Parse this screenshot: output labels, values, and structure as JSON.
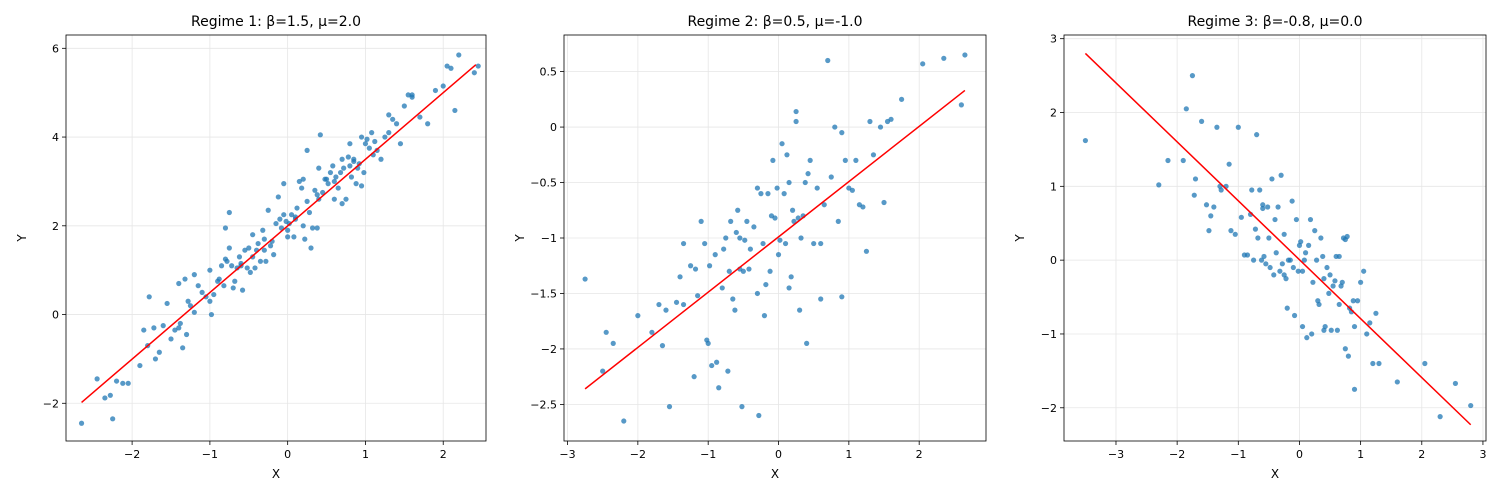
{
  "figure": {
    "background": "#ffffff"
  },
  "chart_data": [
    {
      "type": "scatter",
      "title": "Regime 1: β=1.5, μ=2.0",
      "xlabel": "X",
      "ylabel": "Y",
      "xlim": [
        -2.85,
        2.55
      ],
      "ylim": [
        -2.85,
        6.3
      ],
      "xticks": [
        -2,
        -1,
        0,
        1,
        2
      ],
      "yticks": [
        -2,
        0,
        2,
        4,
        6
      ],
      "grid": true,
      "point_color": "#1f77b4",
      "line_color": "#ff0000",
      "fit_line": {
        "x": [
          -2.65,
          2.42
        ],
        "y": [
          -1.98,
          5.63
        ]
      },
      "points": {
        "x": [
          -2.65,
          -2.45,
          -2.35,
          -2.28,
          -2.25,
          -2.2,
          -2.12,
          -2.05,
          -1.9,
          -1.85,
          -1.8,
          -1.78,
          -1.72,
          -1.7,
          -1.65,
          -1.6,
          -1.55,
          -1.5,
          -1.45,
          -1.4,
          -1.38,
          -1.35,
          -1.32,
          -1.3,
          -1.28,
          -1.25,
          -1.2,
          -1.15,
          -1.1,
          -1.05,
          -1.0,
          -0.98,
          -0.95,
          -0.9,
          -0.88,
          -0.85,
          -0.82,
          -0.8,
          -0.78,
          -0.75,
          -0.72,
          -0.7,
          -0.68,
          -0.65,
          -0.62,
          -0.6,
          -0.58,
          -0.55,
          -0.52,
          -0.5,
          -0.48,
          -0.45,
          -0.42,
          -0.4,
          -0.38,
          -0.35,
          -0.32,
          -0.3,
          -0.28,
          -0.25,
          -0.22,
          -0.2,
          -0.18,
          -0.15,
          -0.12,
          -0.1,
          -0.08,
          -0.05,
          -0.02,
          0.0,
          0.02,
          0.05,
          0.08,
          0.1,
          0.12,
          0.15,
          0.18,
          0.2,
          0.22,
          0.25,
          0.28,
          0.3,
          0.32,
          0.35,
          0.38,
          0.4,
          0.42,
          0.45,
          0.48,
          0.5,
          0.52,
          0.55,
          0.58,
          0.6,
          0.62,
          0.65,
          0.68,
          0.7,
          0.72,
          0.75,
          0.78,
          0.8,
          0.82,
          0.85,
          0.88,
          0.9,
          0.92,
          0.95,
          0.98,
          1.0,
          1.02,
          1.05,
          1.08,
          1.1,
          1.12,
          1.15,
          1.2,
          1.25,
          1.3,
          1.35,
          1.4,
          1.45,
          1.5,
          1.55,
          1.6,
          1.7,
          1.8,
          1.9,
          2.0,
          2.05,
          2.1,
          2.15,
          2.2,
          2.4,
          2.45,
          -0.75,
          -0.3,
          0.2,
          0.6,
          0.95,
          1.3,
          -1.2,
          -0.6,
          0.0,
          0.4,
          0.8,
          -0.05,
          0.38,
          -0.8,
          0.1,
          -1.4,
          0.7,
          -0.45,
          0.85,
          1.6,
          -1.0,
          0.25
        ],
        "y": [
          -2.45,
          -1.45,
          -1.88,
          -1.82,
          -2.35,
          -1.5,
          -1.55,
          -1.55,
          -1.15,
          -0.35,
          -0.7,
          0.4,
          -0.3,
          -1.0,
          -0.85,
          -0.25,
          0.25,
          -0.55,
          -0.35,
          -0.3,
          -0.2,
          -0.75,
          0.8,
          -0.45,
          0.3,
          0.2,
          0.05,
          0.65,
          0.5,
          0.4,
          1.0,
          0.0,
          0.45,
          0.75,
          0.8,
          1.1,
          0.65,
          1.25,
          1.2,
          1.5,
          1.1,
          0.6,
          0.75,
          1.05,
          1.3,
          1.1,
          0.55,
          1.45,
          1.05,
          1.5,
          0.95,
          1.3,
          1.05,
          1.45,
          1.6,
          1.2,
          1.9,
          1.45,
          1.2,
          2.35,
          1.55,
          1.65,
          1.35,
          2.05,
          2.65,
          2.15,
          1.95,
          2.25,
          2.1,
          1.9,
          2.05,
          2.25,
          1.75,
          2.2,
          2.4,
          3.0,
          2.85,
          3.05,
          1.7,
          2.55,
          2.3,
          1.5,
          1.95,
          2.8,
          1.95,
          2.6,
          4.05,
          2.75,
          3.05,
          3.05,
          2.95,
          3.2,
          3.35,
          3.0,
          3.1,
          2.85,
          3.2,
          3.5,
          3.3,
          2.6,
          3.55,
          3.35,
          3.1,
          3.45,
          2.95,
          3.3,
          3.4,
          4.0,
          3.2,
          3.85,
          3.95,
          3.75,
          4.1,
          3.6,
          3.9,
          3.7,
          3.5,
          4.0,
          4.1,
          4.4,
          4.3,
          3.85,
          4.7,
          4.95,
          4.9,
          4.45,
          4.3,
          5.05,
          5.15,
          5.6,
          5.55,
          4.6,
          5.85,
          5.45,
          5.6,
          2.3,
          1.7,
          2.0,
          2.6,
          2.9,
          4.5,
          0.9,
          1.15,
          1.75,
          3.3,
          3.85,
          2.95,
          2.7,
          1.95,
          2.15,
          0.7,
          2.5,
          1.8,
          3.5,
          4.95,
          0.3,
          3.7
        ]
      }
    },
    {
      "type": "scatter",
      "title": "Regime 2: β=0.5, μ=-1.0",
      "xlabel": "X",
      "ylabel": "Y",
      "xlim": [
        -3.05,
        2.95
      ],
      "ylim": [
        -2.83,
        0.83
      ],
      "xticks": [
        -3,
        -2,
        -1,
        0,
        1,
        2
      ],
      "yticks": [
        -2.5,
        -2.0,
        -1.5,
        -1.0,
        -0.5,
        0.0,
        0.5
      ],
      "grid": true,
      "point_color": "#1f77b4",
      "line_color": "#ff0000",
      "fit_line": {
        "x": [
          -2.75,
          2.65
        ],
        "y": [
          -2.36,
          0.33
        ]
      },
      "points": {
        "x": [
          -2.75,
          -2.5,
          -2.45,
          -2.35,
          -2.2,
          -2.0,
          -1.8,
          -1.7,
          -1.65,
          -1.6,
          -1.55,
          -1.45,
          -1.4,
          -1.35,
          -1.25,
          -1.2,
          -1.18,
          -1.15,
          -1.1,
          -1.05,
          -1.02,
          -1.0,
          -0.98,
          -0.95,
          -0.9,
          -0.88,
          -0.85,
          -0.8,
          -0.78,
          -0.75,
          -0.72,
          -0.7,
          -0.68,
          -0.65,
          -0.62,
          -0.6,
          -0.58,
          -0.55,
          -0.52,
          -0.5,
          -0.48,
          -0.45,
          -0.42,
          -0.4,
          -0.35,
          -0.3,
          -0.28,
          -0.25,
          -0.22,
          -0.2,
          -0.18,
          -0.15,
          -0.12,
          -0.1,
          -0.08,
          -0.05,
          -0.02,
          0.0,
          0.02,
          0.05,
          0.08,
          0.1,
          0.12,
          0.15,
          0.18,
          0.2,
          0.22,
          0.25,
          0.28,
          0.3,
          0.32,
          0.35,
          0.38,
          0.4,
          0.42,
          0.45,
          0.5,
          0.55,
          0.6,
          0.65,
          0.7,
          0.75,
          0.8,
          0.85,
          0.9,
          0.95,
          1.0,
          1.05,
          1.1,
          1.15,
          1.2,
          1.3,
          1.35,
          1.45,
          1.5,
          1.55,
          1.6,
          1.75,
          2.05,
          2.35,
          2.6,
          2.65,
          -0.3,
          0.15,
          0.6,
          -0.55,
          0.9,
          1.25,
          -1.35,
          0.25
        ],
        "y": [
          -1.37,
          -2.2,
          -1.85,
          -1.95,
          -2.65,
          -1.7,
          -1.85,
          -1.6,
          -1.97,
          -1.65,
          -2.52,
          -1.58,
          -1.35,
          -1.6,
          -1.25,
          -2.25,
          -1.28,
          -1.52,
          -0.85,
          -1.05,
          -1.92,
          -1.95,
          -1.25,
          -2.15,
          -1.15,
          -2.12,
          -2.35,
          -1.45,
          -1.1,
          -1.0,
          -2.2,
          -1.3,
          -0.85,
          -1.55,
          -1.65,
          -0.95,
          -0.75,
          -1.0,
          -2.52,
          -1.3,
          -1.02,
          -0.85,
          -1.28,
          -1.1,
          -0.9,
          -0.55,
          -2.6,
          -0.6,
          -1.05,
          -1.7,
          -1.42,
          -0.6,
          -1.3,
          -0.8,
          -0.3,
          -0.82,
          -0.55,
          -1.15,
          -1.02,
          -0.15,
          -0.6,
          -1.05,
          -0.25,
          -1.45,
          -1.35,
          -0.75,
          -0.85,
          0.14,
          -0.82,
          -1.65,
          -1.0,
          -0.8,
          -0.5,
          -1.95,
          -0.42,
          -0.3,
          -1.05,
          -0.55,
          -1.05,
          -0.7,
          0.6,
          -0.45,
          0.0,
          -0.85,
          -0.05,
          -0.3,
          -0.55,
          -0.57,
          -0.3,
          -0.7,
          -0.72,
          0.05,
          -0.25,
          0.0,
          -0.68,
          0.05,
          0.07,
          0.25,
          0.57,
          0.62,
          0.2,
          0.65,
          -1.5,
          -0.5,
          -1.55,
          -1.28,
          -1.53,
          -1.12,
          -1.05,
          0.05
        ],
        "_comment": ""
      }
    },
    {
      "type": "scatter",
      "title": "Regime 3: β=-0.8, μ=0.0",
      "xlabel": "X",
      "ylabel": "Y",
      "xlim": [
        -3.85,
        3.05
      ],
      "ylim": [
        -2.45,
        3.05
      ],
      "xticks": [
        -3,
        -2,
        -1,
        0,
        1,
        2,
        3
      ],
      "yticks": [
        -2,
        -1,
        0,
        1,
        2,
        3
      ],
      "grid": true,
      "point_color": "#1f77b4",
      "line_color": "#ff0000",
      "fit_line": {
        "x": [
          -3.5,
          2.8
        ],
        "y": [
          2.8,
          -2.23
        ]
      },
      "points": {
        "x": [
          -3.5,
          -2.3,
          -2.15,
          -1.9,
          -1.85,
          -1.75,
          -1.72,
          -1.7,
          -1.6,
          -1.52,
          -1.48,
          -1.45,
          -1.4,
          -1.35,
          -1.28,
          -1.2,
          -1.15,
          -1.12,
          -1.05,
          -1.0,
          -0.95,
          -0.9,
          -0.85,
          -0.8,
          -0.78,
          -0.75,
          -0.72,
          -0.7,
          -0.68,
          -0.65,
          -0.62,
          -0.6,
          -0.58,
          -0.55,
          -0.52,
          -0.5,
          -0.48,
          -0.45,
          -0.42,
          -0.4,
          -0.38,
          -0.35,
          -0.32,
          -0.3,
          -0.28,
          -0.25,
          -0.22,
          -0.2,
          -0.18,
          -0.15,
          -0.12,
          -0.1,
          -0.08,
          -0.05,
          -0.02,
          0.0,
          0.02,
          0.05,
          0.08,
          0.1,
          0.12,
          0.15,
          0.18,
          0.2,
          0.22,
          0.25,
          0.28,
          0.3,
          0.32,
          0.35,
          0.38,
          0.4,
          0.42,
          0.45,
          0.48,
          0.5,
          0.52,
          0.55,
          0.58,
          0.6,
          0.62,
          0.65,
          0.68,
          0.7,
          0.72,
          0.75,
          0.78,
          0.8,
          0.82,
          0.85,
          0.88,
          0.9,
          0.95,
          1.0,
          1.05,
          1.1,
          1.15,
          1.2,
          1.25,
          1.3,
          1.6,
          2.05,
          2.3,
          2.55,
          2.8,
          -0.6,
          0.05,
          0.65,
          -1.3,
          0.4,
          0.9,
          -0.25,
          0.75
        ],
        "y": [
          1.62,
          1.02,
          1.35,
          1.35,
          2.05,
          2.5,
          0.88,
          1.1,
          1.88,
          0.75,
          0.4,
          0.6,
          0.72,
          1.8,
          0.95,
          1.0,
          1.3,
          0.4,
          0.35,
          1.8,
          0.58,
          0.07,
          0.07,
          0.62,
          0.95,
          0.0,
          0.42,
          1.7,
          0.3,
          0.95,
          0.0,
          0.7,
          0.05,
          -0.05,
          0.72,
          0.3,
          -0.1,
          1.1,
          -0.2,
          0.55,
          0.1,
          0.72,
          -0.15,
          1.15,
          -0.05,
          0.35,
          -0.25,
          -0.65,
          0.0,
          0.0,
          0.8,
          -0.1,
          -0.75,
          0.55,
          -0.15,
          0.2,
          0.25,
          -0.9,
          0.0,
          0.1,
          -1.05,
          0.2,
          0.55,
          -1.0,
          -0.3,
          0.4,
          0.0,
          -0.55,
          -0.6,
          0.3,
          0.05,
          -0.95,
          -0.9,
          -0.1,
          -0.45,
          -0.2,
          -0.95,
          -0.35,
          -0.28,
          0.05,
          -0.95,
          -0.6,
          -0.35,
          -0.3,
          0.3,
          -1.2,
          0.32,
          -1.3,
          -0.65,
          -0.7,
          -0.55,
          -0.9,
          -0.55,
          -0.3,
          -0.15,
          -1.0,
          -0.85,
          -1.4,
          -0.72,
          -1.4,
          -1.65,
          -1.4,
          -2.12,
          -1.67,
          -1.97,
          0.75,
          -0.15,
          0.05,
          1.0,
          -0.25,
          -1.75,
          -0.2,
          0.28
        ]
      }
    }
  ]
}
